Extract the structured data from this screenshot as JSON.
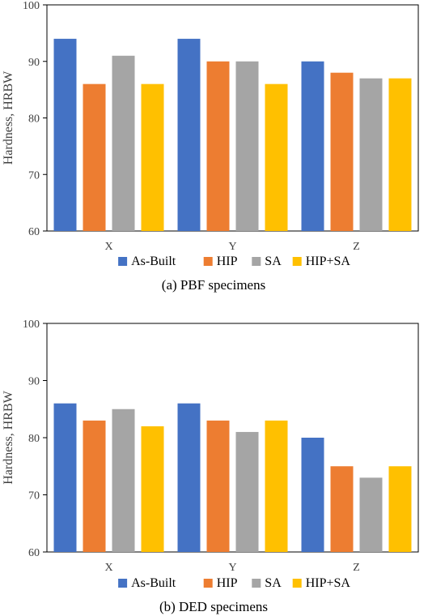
{
  "chart_data": [
    {
      "type": "bar",
      "caption": "(a) PBF specimens",
      "ylabel": "Hardness, HRBW",
      "ylim": [
        60,
        100
      ],
      "yticks": [
        60,
        70,
        80,
        90,
        100
      ],
      "categories": [
        "X",
        "Y",
        "Z"
      ],
      "legend_position": "bottom",
      "grid": false,
      "series": [
        {
          "name": "As-Built",
          "color": "#4472C4",
          "values": [
            94,
            94,
            90
          ]
        },
        {
          "name": "HIP",
          "color": "#ED7D31",
          "values": [
            86,
            90,
            88
          ]
        },
        {
          "name": "SA",
          "color": "#A5A5A5",
          "values": [
            91,
            90,
            87
          ]
        },
        {
          "name": "HIP+SA",
          "color": "#FFC000",
          "values": [
            86,
            86,
            87
          ]
        }
      ]
    },
    {
      "type": "bar",
      "caption": "(b) DED specimens",
      "ylabel": "Hardness, HRBW",
      "ylim": [
        60,
        100
      ],
      "yticks": [
        60,
        70,
        80,
        90,
        100
      ],
      "categories": [
        "X",
        "Y",
        "Z"
      ],
      "legend_position": "bottom",
      "grid": false,
      "series": [
        {
          "name": "As-Built",
          "color": "#4472C4",
          "values": [
            86,
            86,
            80
          ]
        },
        {
          "name": "HIP",
          "color": "#ED7D31",
          "values": [
            83,
            83,
            75
          ]
        },
        {
          "name": "SA",
          "color": "#A5A5A5",
          "values": [
            85,
            81,
            73
          ]
        },
        {
          "name": "HIP+SA",
          "color": "#FFC000",
          "values": [
            82,
            83,
            75
          ]
        }
      ]
    }
  ]
}
